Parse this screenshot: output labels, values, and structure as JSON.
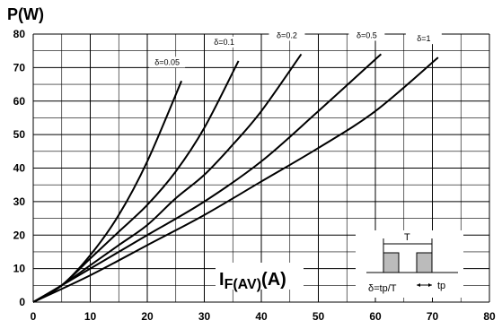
{
  "chart_data": {
    "type": "line",
    "ylabel": "P(W)",
    "xlabel_main": "I",
    "xlabel_sub": "F(AV)",
    "xlabel_unit": "(A)",
    "xlim": [
      0,
      80
    ],
    "ylim": [
      0,
      80
    ],
    "xticks": [
      "0",
      "10",
      "20",
      "30",
      "40",
      "50",
      "60",
      "70",
      "80"
    ],
    "yticks": [
      "0",
      "10",
      "20",
      "30",
      "40",
      "50",
      "60",
      "70",
      "80"
    ],
    "grid": true,
    "series": [
      {
        "name": "δ=0.05",
        "x": [
          0,
          5,
          10,
          15,
          20,
          26
        ],
        "y": [
          0,
          5,
          14,
          26,
          42,
          66
        ]
      },
      {
        "name": "δ=0.1",
        "x": [
          0,
          5,
          10,
          15,
          20,
          25,
          30,
          36
        ],
        "y": [
          0,
          5,
          13,
          21,
          29,
          39,
          52,
          72
        ]
      },
      {
        "name": "δ=0.2",
        "x": [
          0,
          5,
          10,
          15,
          20,
          25,
          30,
          35,
          40,
          47
        ],
        "y": [
          0,
          5,
          11,
          17,
          23,
          31,
          38,
          47,
          57,
          74
        ]
      },
      {
        "name": "δ=0.5",
        "x": [
          0,
          10,
          20,
          30,
          40,
          50,
          61
        ],
        "y": [
          0,
          10,
          20,
          30,
          42,
          57,
          74
        ]
      },
      {
        "name": "δ=1",
        "x": [
          0,
          10,
          20,
          30,
          40,
          50,
          60,
          71
        ],
        "y": [
          0,
          8,
          17,
          26,
          36,
          46,
          57,
          73
        ]
      }
    ],
    "inset": {
      "period_label": "T",
      "duty_label": "δ=tp/T",
      "pulse_label": "tp"
    }
  }
}
